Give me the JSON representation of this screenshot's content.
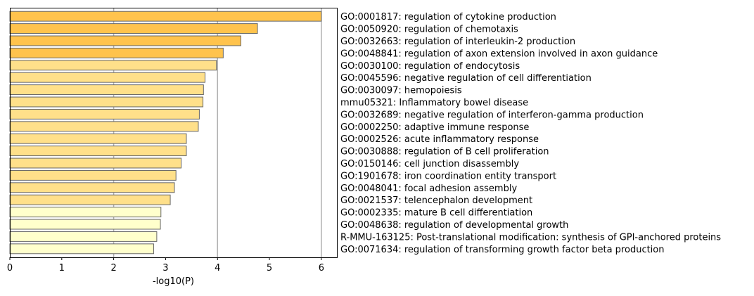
{
  "chart_data": {
    "type": "bar",
    "orientation": "horizontal",
    "title": "",
    "xlabel": "-log10(P)",
    "ylabel": "",
    "xlim": [
      0,
      6.3
    ],
    "xticks": [
      0,
      1,
      2,
      3,
      4,
      5,
      6
    ],
    "xtick_labels": [
      "0",
      "1",
      "2",
      "3",
      "4",
      "5",
      "6"
    ],
    "grid": "vertical",
    "grid_lines_at": [
      2,
      4,
      6
    ],
    "colors": {
      "orange": "#ffc34d",
      "light_orange": "#ffe08a",
      "pale_yellow": "#ffffcc",
      "edge": "#666666",
      "grid": "#b0b0b0"
    },
    "categories": [
      "GO:0001817: regulation of cytokine production",
      "GO:0050920: regulation of chemotaxis",
      "GO:0032663: regulation of interleukin-2 production",
      "GO:0048841: regulation of axon extension involved in axon guidance",
      "GO:0030100: regulation of endocytosis",
      "GO:0045596: negative regulation of cell differentiation",
      "GO:0030097: hemopoiesis",
      "mmu05321: Inflammatory bowel disease",
      "GO:0032689: negative regulation of interferon-gamma production",
      "GO:0002250: adaptive immune response",
      "GO:0002526: acute inflammatory response",
      "GO:0030888: regulation of B cell proliferation",
      "GO:0150146: cell junction disassembly",
      "GO:1901678: iron coordination entity transport",
      "GO:0048041: focal adhesion assembly",
      "GO:0021537: telencephalon development",
      "GO:0002335: mature B cell differentiation",
      "GO:0048638: regulation of developmental growth",
      "R-MMU-163125: Post-translational modification: synthesis of GPI-anchored proteins",
      "GO:0071634: regulation of transforming growth factor beta production"
    ],
    "values": [
      6.0,
      4.77,
      4.45,
      4.11,
      3.98,
      3.76,
      3.73,
      3.72,
      3.65,
      3.63,
      3.4,
      3.4,
      3.3,
      3.2,
      3.17,
      3.09,
      2.91,
      2.9,
      2.83,
      2.77
    ],
    "bar_color_keys": [
      "orange",
      "orange",
      "orange",
      "orange",
      "light_orange",
      "light_orange",
      "light_orange",
      "light_orange",
      "light_orange",
      "light_orange",
      "light_orange",
      "light_orange",
      "light_orange",
      "light_orange",
      "light_orange",
      "light_orange",
      "pale_yellow",
      "pale_yellow",
      "pale_yellow",
      "pale_yellow"
    ]
  }
}
